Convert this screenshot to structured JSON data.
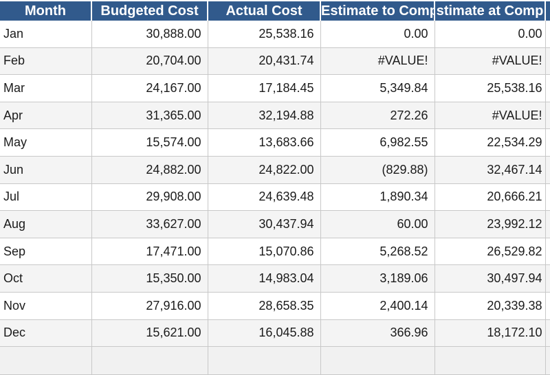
{
  "colors": {
    "header_bg": "#315A8C",
    "header_text": "#FFFFFF",
    "row_bg": "#FFFFFF",
    "row_alt_bg": "#F4F4F4",
    "grid_line": "#C8C8C8",
    "body_text": "#1B1B1B",
    "partial_row_bg": "#F1F1F1"
  },
  "table": {
    "headers": [
      "Month",
      "Budgeted Cost",
      "Actual Cost",
      "Estimate to Comp",
      "stimate at Comp"
    ],
    "rows": [
      [
        "Jan",
        "30,888.00",
        "25,538.16",
        "0.00",
        "0.00"
      ],
      [
        "Feb",
        "20,704.00",
        "20,431.74",
        "#VALUE!",
        "#VALUE!"
      ],
      [
        "Mar",
        "24,167.00",
        "17,184.45",
        "5,349.84",
        "25,538.16"
      ],
      [
        "Apr",
        "31,365.00",
        "32,194.88",
        "272.26",
        "#VALUE!"
      ],
      [
        "May",
        "15,574.00",
        "13,683.66",
        "6,982.55",
        "22,534.29"
      ],
      [
        "Jun",
        "24,882.00",
        "24,822.00",
        "(829.88)",
        "32,467.14"
      ],
      [
        "Jul",
        "29,908.00",
        "24,639.48",
        "1,890.34",
        "20,666.21"
      ],
      [
        "Aug",
        "33,627.00",
        "30,437.94",
        "60.00",
        "23,992.12"
      ],
      [
        "Sep",
        "17,471.00",
        "15,070.86",
        "5,268.52",
        "26,529.82"
      ],
      [
        "Oct",
        "15,350.00",
        "14,983.04",
        "3,189.06",
        "30,497.94"
      ],
      [
        "Nov",
        "27,916.00",
        "28,658.35",
        "2,400.14",
        "20,339.38"
      ],
      [
        "Dec",
        "15,621.00",
        "16,045.88",
        "366.96",
        "18,172.10"
      ]
    ]
  }
}
